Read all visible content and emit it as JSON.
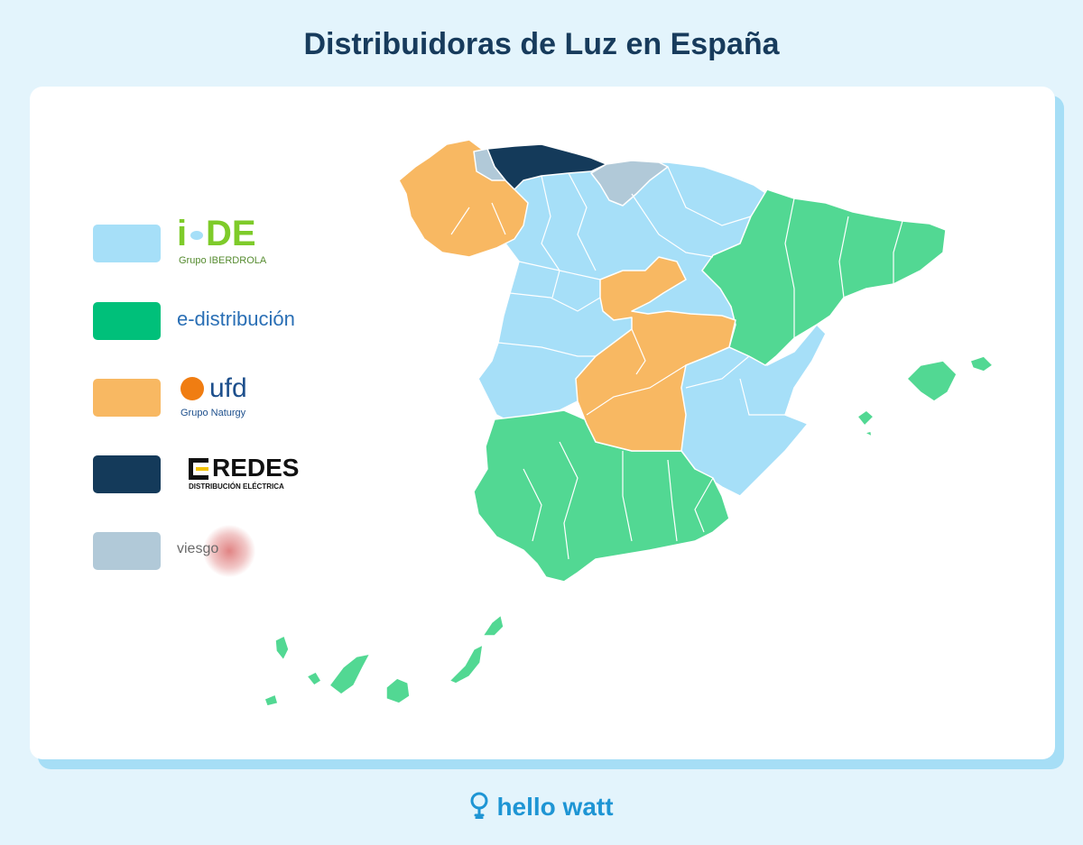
{
  "title": "Distribuidoras de Luz en España",
  "colors": {
    "background": "#e3f4fc",
    "i_de": "#a6dff8",
    "e_distribucion": "#52d893",
    "ufd": "#f8b862",
    "e_redes": "#143a5a",
    "viesgo": "#b1c9d8",
    "border": "#ffffff"
  },
  "legend": [
    {
      "key": "i_de",
      "brand": "i-DE",
      "subtitle": "Grupo IBERDROLA",
      "color": "#a6dff8"
    },
    {
      "key": "e_distribucion",
      "brand": "e-distribución",
      "color": "#00c07a"
    },
    {
      "key": "ufd",
      "brand": "ufd",
      "subtitle": "Grupo Naturgy",
      "color": "#f8b862"
    },
    {
      "key": "e_redes",
      "brand": "REDES",
      "subtitle": "DISTRIBUCIÓN ELÉCTRICA",
      "color": "#143a5a"
    },
    {
      "key": "viesgo",
      "brand": "viesgo",
      "color": "#b1c9d8"
    }
  ],
  "footer": {
    "brand": "hello watt",
    "icon": "lightbulb-icon"
  }
}
